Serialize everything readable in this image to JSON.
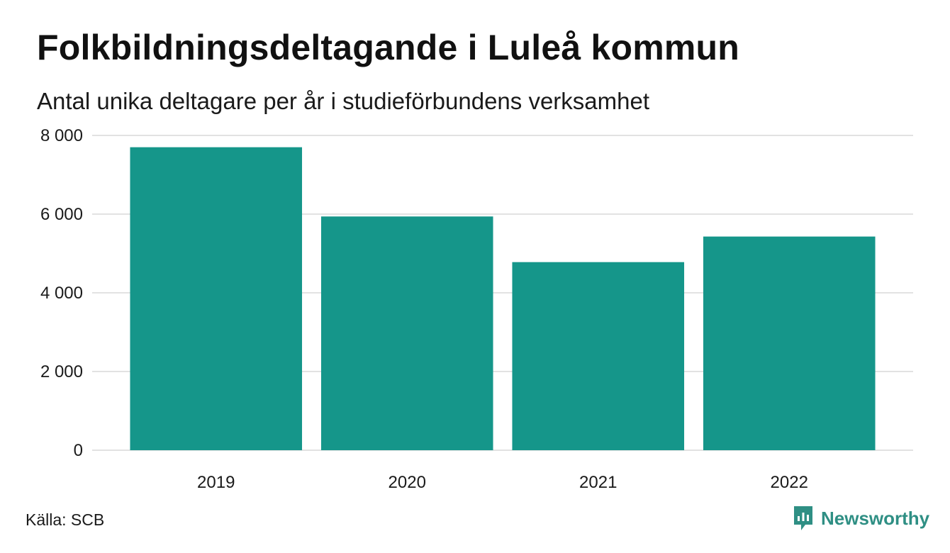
{
  "chart_data": {
    "type": "bar",
    "title": "Folkbildningsdeltagande i Luleå kommun",
    "subtitle": "Antal unika deltagare per år i studieförbundens verksamhet",
    "categories": [
      "2019",
      "2020",
      "2021",
      "2022"
    ],
    "values": [
      7700,
      5940,
      4780,
      5430
    ],
    "ylim": [
      0,
      8000
    ],
    "yticks": [
      0,
      2000,
      4000,
      6000,
      8000
    ],
    "ytick_labels": [
      "0",
      "2 000",
      "4 000",
      "6 000",
      "8 000"
    ],
    "grid": true,
    "bar_color": "#15968a",
    "grid_color": "#e2e2e2"
  },
  "footer": {
    "source": "Källa: SCB",
    "brand": "Newsworthy",
    "brand_color": "#2f8f84"
  },
  "icons": {
    "brand_logo": "newsworthy-logo-icon"
  }
}
